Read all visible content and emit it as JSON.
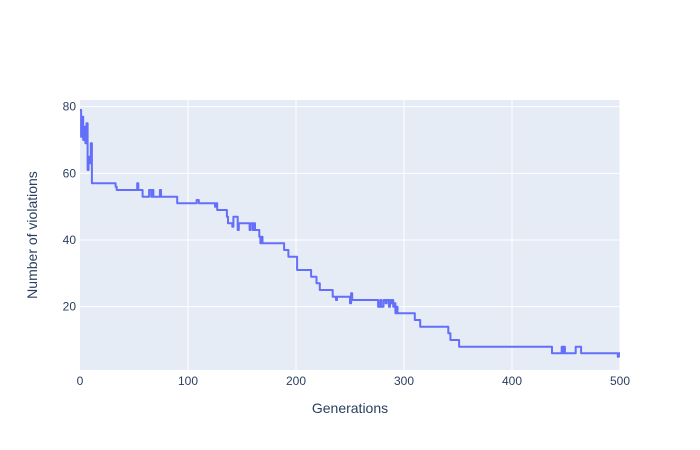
{
  "chart_data": {
    "type": "line",
    "title": "",
    "xlabel": "Generations",
    "ylabel": "Number of violations",
    "xlim": [
      0,
      500
    ],
    "ylim": [
      1,
      82
    ],
    "x_ticks": [
      0,
      100,
      200,
      300,
      400,
      500
    ],
    "y_ticks": [
      20,
      40,
      60,
      80
    ],
    "grid": true,
    "legend": "none",
    "colors": {
      "line": "#636efa",
      "plot_bg": "#e5ecf6",
      "grid": "#ffffff",
      "text": "#2a3f5f"
    },
    "series": [
      {
        "points": [
          [
            0,
            79
          ],
          [
            1,
            71
          ],
          [
            2,
            77
          ],
          [
            3,
            70
          ],
          [
            4,
            74
          ],
          [
            5,
            69
          ],
          [
            6,
            75
          ],
          [
            7,
            61
          ],
          [
            8,
            65
          ],
          [
            9,
            63
          ],
          [
            10,
            69
          ],
          [
            11,
            57
          ],
          [
            32,
            57
          ],
          [
            33,
            56
          ],
          [
            34,
            55
          ],
          [
            52,
            55
          ],
          [
            53,
            57
          ],
          [
            54,
            55
          ],
          [
            57,
            55
          ],
          [
            58,
            53
          ],
          [
            63,
            53
          ],
          [
            64,
            55
          ],
          [
            66,
            53
          ],
          [
            67,
            55
          ],
          [
            68,
            53
          ],
          [
            73,
            53
          ],
          [
            74,
            55
          ],
          [
            75,
            53
          ],
          [
            89,
            53
          ],
          [
            90,
            51
          ],
          [
            107,
            51
          ],
          [
            108,
            52
          ],
          [
            110,
            51
          ],
          [
            124,
            51
          ],
          [
            125,
            50
          ],
          [
            126,
            51
          ],
          [
            127,
            49
          ],
          [
            135,
            49
          ],
          [
            136,
            47
          ],
          [
            137,
            45
          ],
          [
            140,
            45
          ],
          [
            141,
            44
          ],
          [
            142,
            47
          ],
          [
            145,
            47
          ],
          [
            146,
            43
          ],
          [
            147,
            45
          ],
          [
            156,
            45
          ],
          [
            157,
            43
          ],
          [
            158,
            45
          ],
          [
            160,
            43
          ],
          [
            161,
            45
          ],
          [
            162,
            43
          ],
          [
            165,
            43
          ],
          [
            166,
            41
          ],
          [
            167,
            39
          ],
          [
            168,
            41
          ],
          [
            169,
            39
          ],
          [
            188,
            39
          ],
          [
            189,
            37
          ],
          [
            192,
            37
          ],
          [
            193,
            35
          ],
          [
            200,
            35
          ],
          [
            201,
            31
          ],
          [
            213,
            31
          ],
          [
            214,
            29
          ],
          [
            218,
            29
          ],
          [
            219,
            27
          ],
          [
            221,
            27
          ],
          [
            222,
            25
          ],
          [
            233,
            25
          ],
          [
            234,
            23
          ],
          [
            236,
            23
          ],
          [
            237,
            22
          ],
          [
            238,
            23
          ],
          [
            249,
            23
          ],
          [
            250,
            21
          ],
          [
            251,
            24
          ],
          [
            252,
            22
          ],
          [
            275,
            22
          ],
          [
            276,
            20
          ],
          [
            278,
            22
          ],
          [
            279,
            20
          ],
          [
            281,
            22
          ],
          [
            283,
            21
          ],
          [
            284,
            22
          ],
          [
            286,
            20
          ],
          [
            287,
            22
          ],
          [
            288,
            21
          ],
          [
            289,
            22
          ],
          [
            290,
            20
          ],
          [
            291,
            21
          ],
          [
            292,
            18
          ],
          [
            293,
            20
          ],
          [
            294,
            18
          ],
          [
            309,
            18
          ],
          [
            310,
            16
          ],
          [
            314,
            16
          ],
          [
            315,
            14
          ],
          [
            340,
            14
          ],
          [
            341,
            12
          ],
          [
            343,
            10
          ],
          [
            350,
            10
          ],
          [
            351,
            8
          ],
          [
            436,
            8
          ],
          [
            437,
            6
          ],
          [
            445,
            6
          ],
          [
            446,
            8
          ],
          [
            447,
            6
          ],
          [
            448,
            8
          ],
          [
            449,
            6
          ],
          [
            458,
            6
          ],
          [
            459,
            8
          ],
          [
            463,
            8
          ],
          [
            464,
            6
          ],
          [
            497,
            6
          ],
          [
            498,
            5
          ],
          [
            499,
            6
          ],
          [
            500,
            6
          ]
        ]
      }
    ]
  }
}
